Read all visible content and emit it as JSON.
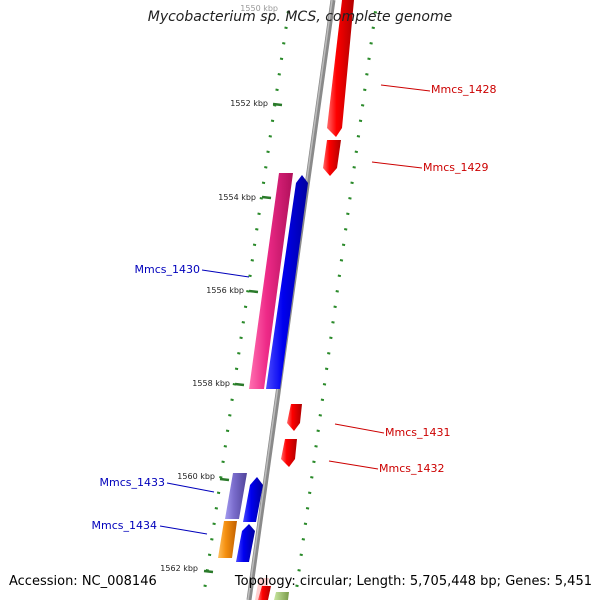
{
  "title": "Mycobacterium sp. MCS, complete genome",
  "footer": {
    "accession": "Accession: NC_008146",
    "topology": "Topology: circular;",
    "length": "Length: 5,705,448 bp;",
    "genes": "Genes: 5,451"
  },
  "scale_labels": [
    "1550 kbp",
    "1552 kbp",
    "1554 kbp",
    "1556 kbp",
    "1558 kbp",
    "1560 kbp",
    "1562 kbp"
  ],
  "genes": [
    {
      "name": "Mmcs_1428",
      "strand": "+",
      "color": "#e00000"
    },
    {
      "name": "Mmcs_1429",
      "strand": "+",
      "color": "#e00000"
    },
    {
      "name": "Mmcs_1430",
      "strand": "-",
      "color": "#e8207a"
    },
    {
      "name": "Mmcs_1431",
      "strand": "+",
      "color": "#e00000"
    },
    {
      "name": "Mmcs_1432",
      "strand": "+",
      "color": "#e00000"
    },
    {
      "name": "Mmcs_1433",
      "strand": "-",
      "color": "#7a6cc8"
    },
    {
      "name": "Mmcs_1434",
      "strand": "-",
      "color": "#f08c10"
    }
  ],
  "colors": {
    "backbone": "#777777",
    "tick": "#2a8a2a",
    "forward_label": "#cc0000",
    "reverse_label": "#0000bb",
    "blue_gene": "#0000ee"
  }
}
